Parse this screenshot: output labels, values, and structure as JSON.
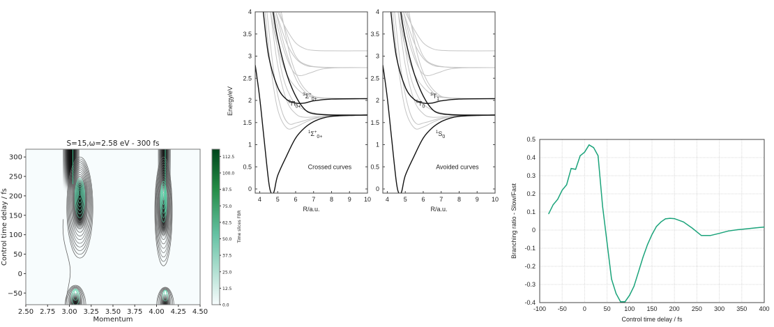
{
  "chart_data": [
    {
      "type": "heatmap",
      "title": "S=15,ω=2.58 eV - 300 fs",
      "xlabel": "Momentum",
      "ylabel": "Control time delay / fs",
      "xlim": [
        2.5,
        4.5
      ],
      "ylim": [
        -80,
        320
      ],
      "xticks": [
        "2.50",
        "2.75",
        "3.00",
        "3.25",
        "3.50",
        "3.75",
        "4.00",
        "4.25",
        "4.50"
      ],
      "yticks": [
        "−50",
        "0",
        "50",
        "100",
        "150",
        "200",
        "250",
        "300"
      ],
      "colorbar": {
        "label": "Time slices FBR",
        "range": [
          0,
          118
        ],
        "ticks": [
          "0.0",
          "12.5",
          "25.0",
          "37.5",
          "50.0",
          "62.5",
          "75.0",
          "87.5",
          "100.0",
          "112.5"
        ],
        "colors": [
          "#f7fcfd",
          "#66c2a4",
          "#00441b"
        ]
      }
    },
    {
      "type": "line",
      "xlabel": "R/a.u.",
      "ylabel": "Energy/eV",
      "xlim": [
        3.75,
        10
      ],
      "ylim": [
        -0.1,
        4
      ],
      "xticks": [
        "4",
        "5",
        "6",
        "7",
        "8",
        "9",
        "10"
      ],
      "yticks": [
        "0",
        "0.5",
        "1",
        "1.5",
        "2",
        "2.5",
        "3",
        "3.5",
        "4"
      ],
      "annotation": "Crossed curves",
      "curve_labels": [
        {
          "base": "3",
          "main": "Σ",
          "sup": "+",
          "sub": "0+"
        },
        {
          "base": "3",
          "main": "Π",
          "sup": "",
          "sub": "0+"
        },
        {
          "base": "1",
          "main": "Σ",
          "sup": "+",
          "sub": "0+"
        }
      ]
    },
    {
      "type": "line",
      "xlabel": "R/a.u.",
      "ylabel": "",
      "xlim": [
        3.75,
        10
      ],
      "ylim": [
        -0.1,
        4
      ],
      "xticks": [
        "4",
        "5",
        "6",
        "7",
        "8",
        "9",
        "10"
      ],
      "yticks": [
        "0",
        "0.5",
        "1",
        "1.5",
        "2",
        "2.5",
        "3",
        "3.5",
        "4"
      ],
      "annotation": "Avoided curves",
      "curve_labels": [
        {
          "base": "3",
          "main": "T",
          "sup": "",
          "sub": "1"
        },
        {
          "base": "3",
          "main": "T",
          "sup": "",
          "sub": "0"
        },
        {
          "base": "1",
          "main": "S",
          "sup": "",
          "sub": "0"
        }
      ]
    },
    {
      "type": "line",
      "xlabel": "Control time delay / fs",
      "ylabel": "Branching ratio - Slow/Fast",
      "xlim": [
        -100,
        400
      ],
      "ylim": [
        -0.4,
        0.5
      ],
      "grid": true,
      "color": "#1aa37a",
      "xticks": [
        "-100",
        "-50",
        "0",
        "50",
        "100",
        "150",
        "200",
        "250",
        "300",
        "350",
        "400"
      ],
      "yticks": [
        "-0.4",
        "-0.3",
        "-0.2",
        "-0.1",
        "0",
        "0.1",
        "0.2",
        "0.3",
        "0.4",
        "0.5"
      ],
      "x": [
        -80,
        -70,
        -60,
        -50,
        -40,
        -30,
        -20,
        -10,
        0,
        10,
        20,
        30,
        40,
        50,
        60,
        70,
        80,
        90,
        100,
        110,
        120,
        130,
        140,
        150,
        160,
        170,
        180,
        190,
        200,
        220,
        240,
        260,
        280,
        300,
        320,
        340,
        360,
        380,
        400
      ],
      "y": [
        0.09,
        0.14,
        0.17,
        0.22,
        0.25,
        0.34,
        0.335,
        0.41,
        0.43,
        0.47,
        0.455,
        0.41,
        0.13,
        -0.07,
        -0.27,
        -0.35,
        -0.395,
        -0.395,
        -0.36,
        -0.31,
        -0.23,
        -0.15,
        -0.08,
        -0.025,
        0.02,
        0.045,
        0.062,
        0.065,
        0.063,
        0.045,
        0.01,
        -0.03,
        -0.03,
        -0.018,
        -0.005,
        0.002,
        0.007,
        0.012,
        0.017
      ]
    }
  ],
  "potential_curves": {
    "black": [
      [
        [
          3.75,
          2.8
        ],
        [
          4.0,
          2.06
        ],
        [
          4.25,
          1.1
        ],
        [
          4.5,
          0.17
        ],
        [
          4.65,
          -0.1
        ],
        [
          4.8,
          -0.06
        ],
        [
          5,
          0.3
        ],
        [
          5.5,
          0.75
        ],
        [
          6,
          1.15
        ],
        [
          6.5,
          1.38
        ],
        [
          7,
          1.52
        ],
        [
          7.5,
          1.6
        ],
        [
          8,
          1.64
        ],
        [
          9,
          1.66
        ],
        [
          10,
          1.67
        ]
      ],
      [
        [
          4.2,
          4
        ],
        [
          4.5,
          3.0
        ],
        [
          5,
          2.3
        ],
        [
          5.5,
          2.02
        ],
        [
          6,
          1.94
        ],
        [
          6.5,
          1.94
        ],
        [
          7,
          1.99
        ],
        [
          8,
          2.03
        ],
        [
          10,
          2.04
        ]
      ],
      [
        [
          4.75,
          4
        ],
        [
          5,
          3.4
        ],
        [
          5.5,
          2.6
        ],
        [
          6,
          2.1
        ],
        [
          6.5,
          1.8
        ],
        [
          7,
          1.7
        ],
        [
          8,
          1.67
        ],
        [
          10,
          1.67
        ]
      ]
    ],
    "gray": [
      [
        [
          5.0,
          4
        ],
        [
          5.5,
          3.6
        ],
        [
          6,
          3.3
        ],
        [
          6.5,
          3.17
        ],
        [
          7,
          3.13
        ],
        [
          8,
          3.12
        ],
        [
          10,
          3.12
        ]
      ],
      [
        [
          4.9,
          4
        ],
        [
          5.5,
          3.3
        ],
        [
          6,
          2.95
        ],
        [
          6.5,
          2.8
        ],
        [
          7,
          2.76
        ],
        [
          8,
          2.74
        ],
        [
          10,
          2.74
        ]
      ],
      [
        [
          4.8,
          4
        ],
        [
          5.3,
          3.2
        ],
        [
          5.8,
          2.7
        ],
        [
          6.2,
          2.56
        ],
        [
          6.8,
          2.62
        ],
        [
          7.5,
          2.71
        ],
        [
          8.5,
          2.74
        ],
        [
          10,
          2.74
        ]
      ],
      [
        [
          5.1,
          4
        ],
        [
          5.6,
          3.4
        ],
        [
          6,
          3.0
        ],
        [
          6.5,
          2.82
        ],
        [
          7.5,
          2.75
        ],
        [
          10,
          2.74
        ]
      ],
      [
        [
          4.6,
          4
        ],
        [
          5,
          3.2
        ],
        [
          5.5,
          2.6
        ],
        [
          6,
          2.3
        ],
        [
          6.5,
          2.13
        ],
        [
          7,
          2.07
        ],
        [
          8,
          2.04
        ],
        [
          10,
          2.04
        ]
      ],
      [
        [
          4.9,
          4
        ],
        [
          5.4,
          3.2
        ],
        [
          6,
          2.5
        ],
        [
          6.5,
          2.2
        ],
        [
          7,
          2.08
        ],
        [
          8,
          2.04
        ],
        [
          10,
          2.04
        ]
      ],
      [
        [
          5.2,
          4
        ],
        [
          5.7,
          3.0
        ],
        [
          6.2,
          2.45
        ],
        [
          6.8,
          2.15
        ],
        [
          7.5,
          2.06
        ],
        [
          10,
          2.04
        ]
      ],
      [
        [
          4.3,
          4
        ],
        [
          4.6,
          2.8
        ],
        [
          5,
          1.8
        ],
        [
          5.5,
          1.38
        ],
        [
          6,
          1.4
        ],
        [
          6.5,
          1.5
        ],
        [
          7,
          1.58
        ],
        [
          8,
          1.65
        ],
        [
          10,
          1.67
        ]
      ],
      [
        [
          4.4,
          4
        ],
        [
          4.8,
          2.6
        ],
        [
          5.2,
          1.8
        ],
        [
          5.6,
          1.48
        ],
        [
          6.1,
          1.5
        ],
        [
          7,
          1.6
        ],
        [
          8,
          1.66
        ],
        [
          10,
          1.67
        ]
      ],
      [
        [
          4.6,
          4
        ],
        [
          5,
          2.8
        ],
        [
          5.5,
          2.0
        ],
        [
          6,
          1.7
        ],
        [
          6.5,
          1.62
        ],
        [
          7.5,
          1.64
        ],
        [
          10,
          1.67
        ]
      ],
      [
        [
          4.7,
          4
        ],
        [
          5.2,
          2.7
        ],
        [
          5.7,
          2.1
        ],
        [
          6.2,
          1.85
        ],
        [
          7,
          1.72
        ],
        [
          8,
          1.68
        ],
        [
          10,
          1.67
        ]
      ]
    ]
  }
}
